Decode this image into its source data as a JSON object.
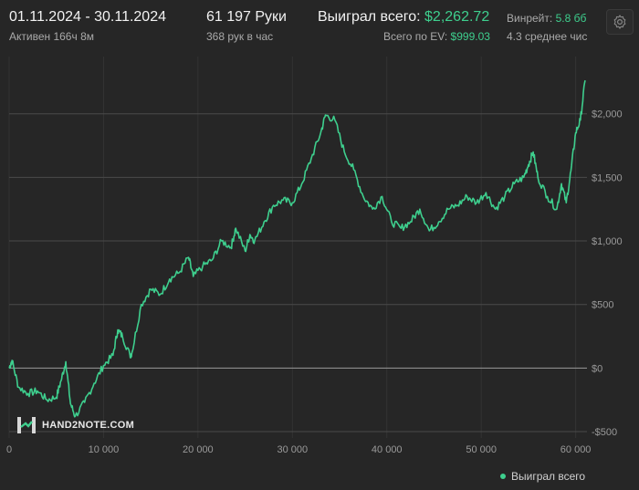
{
  "header": {
    "date_range": "01.11.2024 - 30.11.2024",
    "active_time": "Активен 166ч 8м",
    "hands_count": "61 197 Руки",
    "hands_per_hour": "368 рук в час",
    "won_total_label": "Выиграл всего:",
    "won_total_value": "$2,262.72",
    "ev_label": "Всего по EV:",
    "ev_value": "$999.03",
    "winrate_label": "Винрейт:",
    "winrate_value": "5.8 бб",
    "avg_text": "4.3 среднее чис"
  },
  "logo_text": "HAND2NOTE.COM",
  "legend_label": "Выиграл всего",
  "colors": {
    "line": "#3ecf8e",
    "grid": "#4a4a4a",
    "background": "#262626"
  },
  "chart_data": {
    "type": "line",
    "title": "",
    "xlabel": "",
    "ylabel": "",
    "xlim": [
      0,
      61197
    ],
    "ylim": [
      -550,
      2450
    ],
    "x_ticks": [
      0,
      10000,
      20000,
      30000,
      40000,
      50000,
      60000
    ],
    "x_tick_labels": [
      "0",
      "10 000",
      "20 000",
      "30 000",
      "40 000",
      "50 000",
      "60 000"
    ],
    "y_ticks": [
      -500,
      0,
      500,
      1000,
      1500,
      2000
    ],
    "y_tick_labels": [
      "-$500",
      "$0",
      "$500",
      "$1,000",
      "$1,500",
      "$2,000"
    ],
    "grid": true,
    "legend": "bottom-right",
    "series": [
      {
        "name": "Выиграл всего",
        "x": [
          0,
          300,
          1000,
          2000,
          3000,
          4000,
          5000,
          5500,
          6000,
          6500,
          7000,
          8000,
          9000,
          10000,
          11000,
          11500,
          12000,
          12800,
          13000,
          14000,
          15000,
          16000,
          17000,
          18000,
          19000,
          19500,
          20500,
          21500,
          22500,
          23500,
          24000,
          25000,
          25500,
          26000,
          27000,
          28000,
          29000,
          30000,
          31000,
          32000,
          33000,
          33500,
          34500,
          35500,
          36500,
          37500,
          38500,
          39500,
          40500,
          41500,
          42500,
          43500,
          44500,
          45500,
          46500,
          47500,
          48500,
          49500,
          50500,
          51500,
          52500,
          53500,
          54500,
          55000,
          55500,
          56000,
          57000,
          58000,
          58500,
          59000,
          59500,
          60000,
          60500,
          61000
        ],
        "values": [
          0,
          60,
          -150,
          -200,
          -180,
          -250,
          -230,
          -100,
          50,
          -280,
          -380,
          -270,
          -120,
          20,
          100,
          300,
          250,
          100,
          120,
          500,
          620,
          580,
          700,
          750,
          870,
          720,
          800,
          850,
          1000,
          950,
          1100,
          920,
          1050,
          1000,
          1150,
          1280,
          1320,
          1300,
          1450,
          1650,
          1850,
          1990,
          1950,
          1700,
          1560,
          1350,
          1250,
          1350,
          1150,
          1100,
          1150,
          1250,
          1080,
          1150,
          1250,
          1280,
          1350,
          1300,
          1380,
          1250,
          1350,
          1450,
          1500,
          1600,
          1700,
          1500,
          1350,
          1250,
          1450,
          1300,
          1550,
          1850,
          1950,
          2262.72
        ]
      }
    ]
  }
}
